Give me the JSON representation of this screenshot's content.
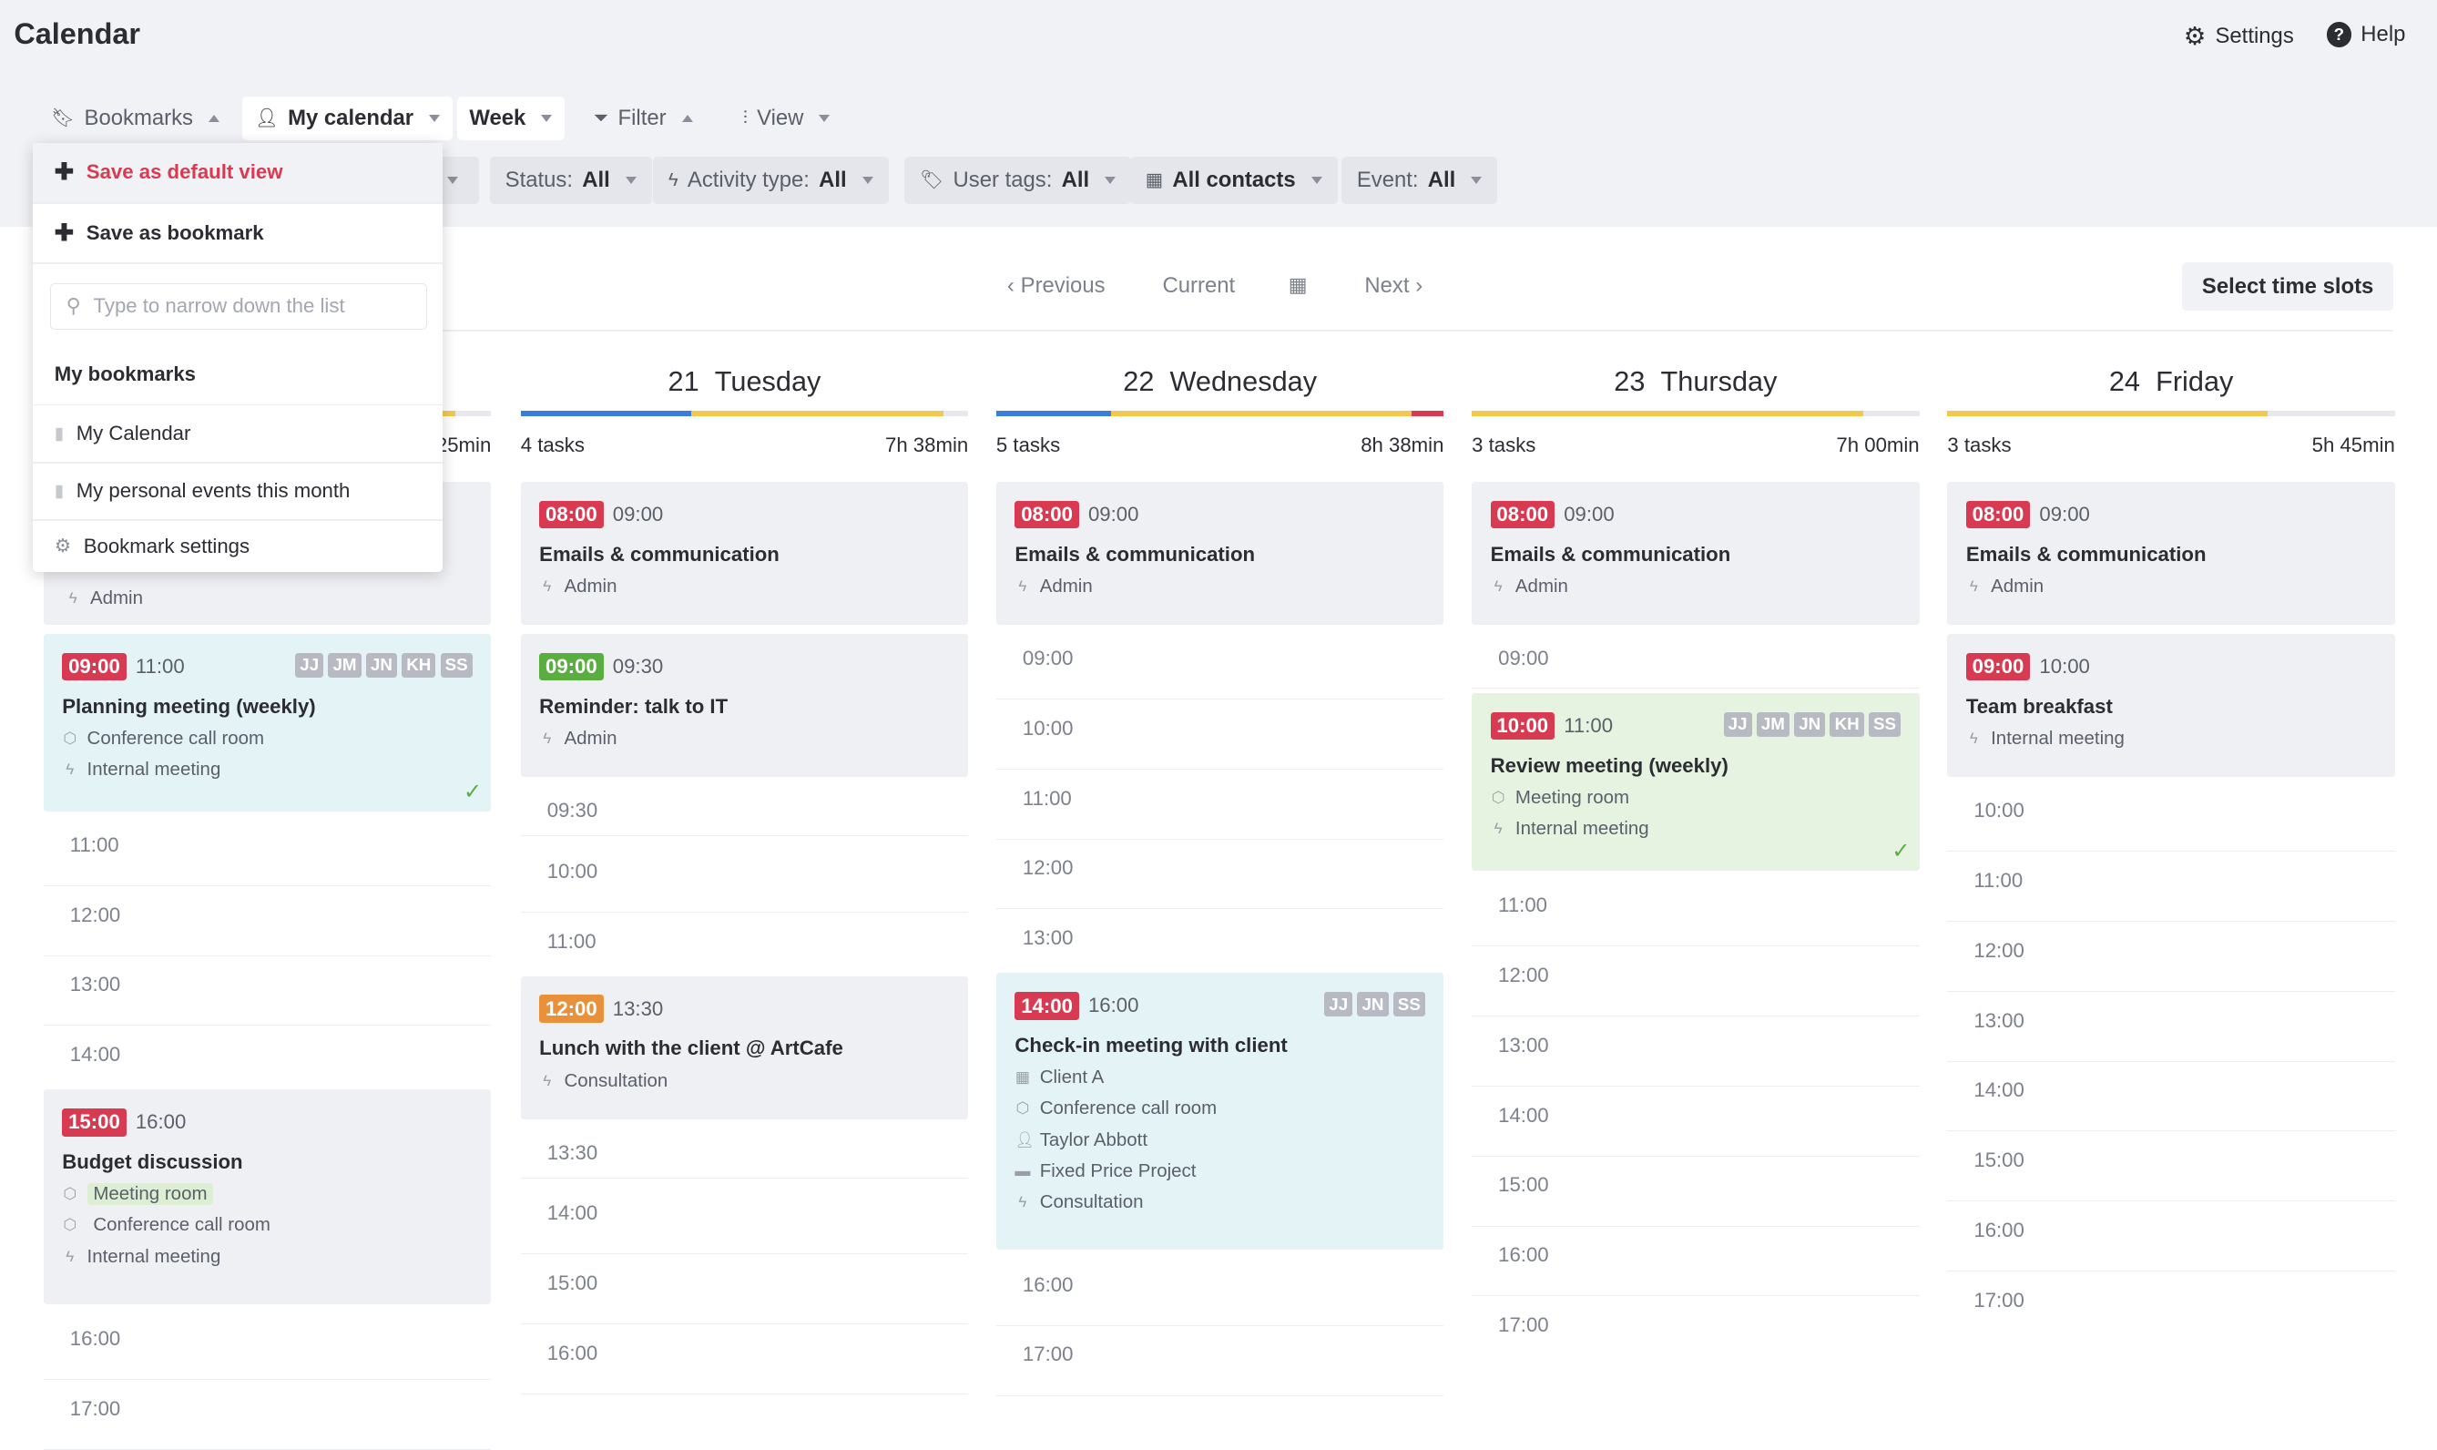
{
  "header": {
    "title": "Calendar",
    "settings": "Settings",
    "help": "Help"
  },
  "toolbar": {
    "bookmarks": "Bookmarks",
    "my_calendar": "My calendar",
    "week": "Week",
    "filter": "Filter",
    "view": "View"
  },
  "filters": {
    "status_label": "Status:",
    "status_value": "All",
    "activity_label": "Activity type:",
    "activity_value": "All",
    "tags_label": "User tags:",
    "tags_value": "All",
    "contacts": "All contacts",
    "event_label": "Event:",
    "event_value": "All"
  },
  "nav": {
    "previous": "Previous",
    "current": "Current",
    "next": "Next",
    "select_slots": "Select time slots"
  },
  "bookmark_menu": {
    "save_default": "Save as default view",
    "save_bookmark": "Save as bookmark",
    "search_placeholder": "Type to narrow down the list",
    "section": "My bookmarks",
    "items": [
      "My Calendar",
      "My personal events this month"
    ],
    "settings": "Bookmark settings"
  },
  "days": [
    {
      "duration": "25min",
      "slots": [
        "11:00",
        "12:00",
        "13:00",
        "14:00",
        "16:00",
        "17:00"
      ],
      "events": [
        {
          "category": "Admin"
        },
        {
          "start": "09:00",
          "end": "11:00",
          "title": "Planning meeting (weekly)",
          "line1": "Conference call room",
          "line2": "Internal meeting",
          "avatars": [
            "JJ",
            "JM",
            "JN",
            "KH",
            "SS"
          ]
        },
        {
          "start": "15:00",
          "end": "16:00",
          "title": "Budget discussion",
          "line1": "Meeting room",
          "line2": "Conference call room",
          "line3": "Internal meeting"
        }
      ]
    },
    {
      "num": "21",
      "name": "Tuesday",
      "tasks": "4 tasks",
      "duration": "7h 38min",
      "slots": [
        "09:30",
        "10:00",
        "11:00",
        "13:30",
        "14:00",
        "15:00",
        "16:00"
      ],
      "events": [
        {
          "start": "08:00",
          "end": "09:00",
          "title": "Emails & communication",
          "line1": "Admin"
        },
        {
          "start": "09:00",
          "end": "09:30",
          "title": "Reminder: talk to IT",
          "line1": "Admin"
        },
        {
          "start": "12:00",
          "end": "13:30",
          "title": "Lunch with the client @ ArtCafe",
          "line1": "Consultation"
        }
      ]
    },
    {
      "num": "22",
      "name": "Wednesday",
      "tasks": "5 tasks",
      "duration": "8h 38min",
      "slots": [
        "09:00",
        "10:00",
        "11:00",
        "12:00",
        "13:00",
        "16:00",
        "17:00"
      ],
      "events": [
        {
          "start": "08:00",
          "end": "09:00",
          "title": "Emails & communication",
          "line1": "Admin"
        },
        {
          "start": "14:00",
          "end": "16:00",
          "title": "Check-in meeting with client",
          "line1": "Client A",
          "line2": "Conference call room",
          "line3": "Taylor Abbott",
          "line4": "Fixed Price Project",
          "line5": "Consultation",
          "avatars": [
            "JJ",
            "JN",
            "SS"
          ]
        }
      ]
    },
    {
      "num": "23",
      "name": "Thursday",
      "tasks": "3 tasks",
      "duration": "7h 00min",
      "slots": [
        "09:00",
        "11:00",
        "12:00",
        "13:00",
        "14:00",
        "15:00",
        "16:00",
        "17:00"
      ],
      "events": [
        {
          "start": "08:00",
          "end": "09:00",
          "title": "Emails & communication",
          "line1": "Admin"
        },
        {
          "start": "10:00",
          "end": "11:00",
          "title": "Review meeting (weekly)",
          "line1": "Meeting room",
          "line2": "Internal meeting",
          "avatars": [
            "JJ",
            "JM",
            "JN",
            "KH",
            "SS"
          ]
        }
      ]
    },
    {
      "num": "24",
      "name": "Friday",
      "tasks": "3 tasks",
      "duration": "5h 45min",
      "slots": [
        "10:00",
        "11:00",
        "12:00",
        "13:00",
        "14:00",
        "15:00",
        "16:00",
        "17:00"
      ],
      "events": [
        {
          "start": "08:00",
          "end": "09:00",
          "title": "Emails & communication",
          "line1": "Admin"
        },
        {
          "start": "09:00",
          "end": "10:00",
          "title": "Team breakfast",
          "line1": "Internal meeting"
        }
      ]
    }
  ]
}
